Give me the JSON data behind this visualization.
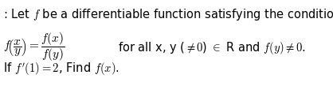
{
  "line1": ": Let $f$ be a differentiable function satisfying the condition:",
  "line2_eq": "$f\\!\\left(\\dfrac{x}{y}\\right) = \\dfrac{f(x)}{f(y)}$",
  "line2_rest": "for all x, y ($\\neq 0$) $\\in$ R and $f(y) \\neq 0$.",
  "line3": "If $f'(1) = 2$, Find $f(x)$.",
  "bg_color": "#ffffff",
  "text_color": "#000000",
  "fontsize_line1": 10.5,
  "fontsize_eq": 11.0,
  "fontsize_rest": 10.5,
  "fontsize_line3": 10.5,
  "fig_width": 4.18,
  "fig_height": 1.09,
  "dpi": 100
}
